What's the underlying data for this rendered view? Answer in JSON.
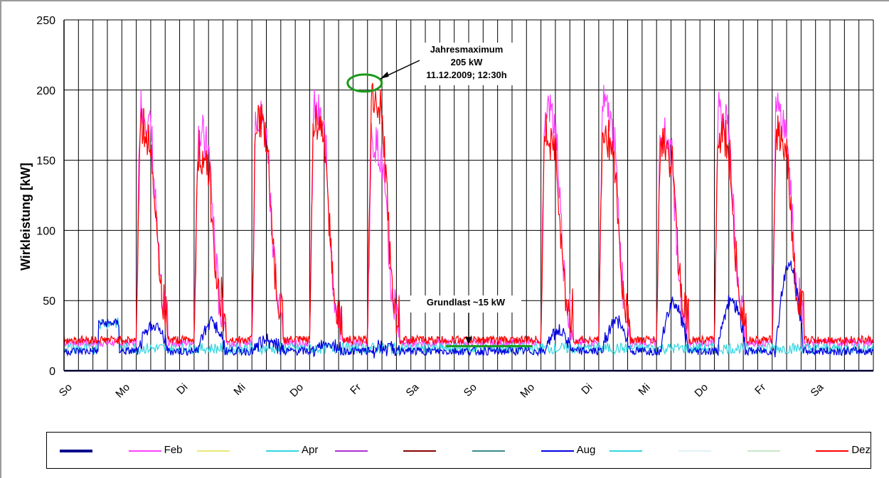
{
  "chart_data": {
    "type": "line",
    "xlabel": "",
    "ylabel": "Wirkleistung [kW]",
    "ylim": [
      0,
      250
    ],
    "yticks": [
      0,
      50,
      100,
      150,
      200,
      250
    ],
    "x_unit": "days",
    "xlim": [
      0,
      14
    ],
    "x_tick_labels": [
      "So",
      "Mo",
      "Di",
      "Mi",
      "Do",
      "Fr",
      "Sa",
      "So",
      "Mo",
      "Di",
      "Mi",
      "Do",
      "Fr",
      "Sa"
    ],
    "grid": true,
    "legend_position": "bottom",
    "annotations": [
      {
        "lines": [
          "Jahresmaximum",
          "205 kW",
          "11.12.2009; 12:30h"
        ],
        "point": [
          5.25,
          205
        ]
      },
      {
        "lines": [
          "Grundlast ~15 kW"
        ],
        "point": [
          7.0,
          15
        ]
      }
    ],
    "series": [
      {
        "color": "#00008b",
        "kind": "flat",
        "level": 0
      },
      {
        "name": "Feb",
        "color": "#ff40ff",
        "kind": "load",
        "weekdays": [
          [
            1,
            190
          ],
          [
            2,
            170
          ],
          [
            3,
            185
          ],
          [
            4,
            185
          ],
          [
            5,
            165
          ],
          [
            8,
            190
          ],
          [
            9,
            188
          ],
          [
            10,
            172
          ],
          [
            11,
            185
          ],
          [
            12,
            185
          ]
        ],
        "base": 20
      },
      {
        "color": "#e8e87a",
        "kind": "none"
      },
      {
        "name": "Apr",
        "color": "#33d6e0",
        "kind": "low",
        "base": 16,
        "amp": 4
      },
      {
        "color": "#b030d0",
        "kind": "none"
      },
      {
        "color": "#8b0000",
        "kind": "none"
      },
      {
        "color": "#3a8a8a",
        "kind": "none"
      },
      {
        "name": "Aug",
        "color": "#0000e0",
        "kind": "aug",
        "weekdays": [
          [
            1,
            33
          ],
          [
            2,
            35
          ],
          [
            3,
            22
          ],
          [
            4,
            20
          ],
          [
            5,
            16
          ],
          [
            8,
            28
          ],
          [
            9,
            35
          ],
          [
            10,
            48
          ],
          [
            11,
            50
          ],
          [
            12,
            75
          ]
        ],
        "base": 14
      },
      {
        "color": "#33d6e0",
        "kind": "none"
      },
      {
        "color": "#dff2f5",
        "kind": "none"
      },
      {
        "color": "#c8e8c8",
        "kind": "none"
      },
      {
        "name": "Dez",
        "color": "#ff0000",
        "kind": "load",
        "weekdays": [
          [
            1,
            175
          ],
          [
            2,
            155
          ],
          [
            3,
            180
          ],
          [
            4,
            180
          ],
          [
            5,
            200
          ],
          [
            8,
            170
          ],
          [
            9,
            170
          ],
          [
            10,
            165
          ],
          [
            11,
            170
          ],
          [
            12,
            170
          ]
        ],
        "base": 22
      }
    ]
  },
  "legend": [
    {
      "label": "",
      "color": "#00008b",
      "thick": true
    },
    {
      "label": "Feb",
      "color": "#ff40ff"
    },
    {
      "label": "",
      "color": "#e8e87a"
    },
    {
      "label": "Apr",
      "color": "#33d6e0"
    },
    {
      "label": "",
      "color": "#b030d0"
    },
    {
      "label": "",
      "color": "#8b0000"
    },
    {
      "label": "",
      "color": "#3a8a8a"
    },
    {
      "label": "Aug",
      "color": "#0000e0"
    },
    {
      "label": "",
      "color": "#33d6e0"
    },
    {
      "label": "",
      "color": "#dff2f5"
    },
    {
      "label": "",
      "color": "#c8e8c8"
    },
    {
      "label": "Dez",
      "color": "#ff0000"
    }
  ]
}
